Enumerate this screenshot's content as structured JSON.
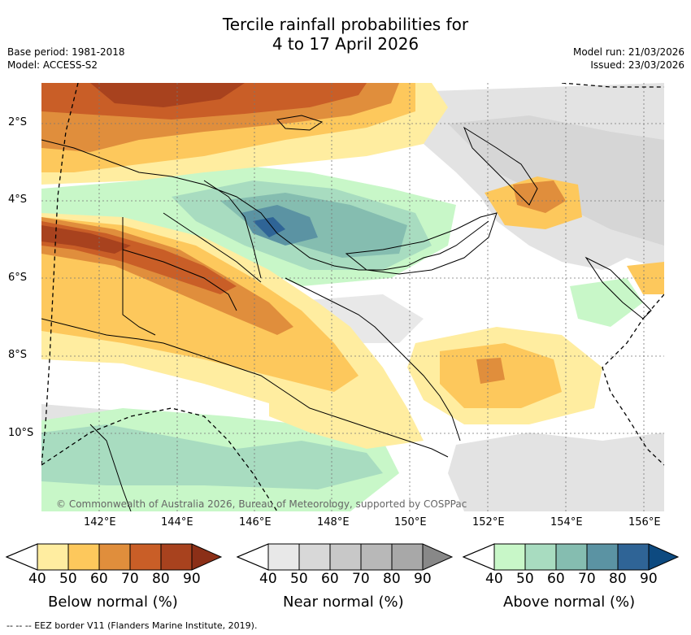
{
  "title": {
    "line1": "Tercile rainfall probabilities for",
    "line2": "4 to 17 April 2026"
  },
  "meta": {
    "base_period": "Base period: 1981-2018",
    "model": "Model: ACCESS-S2",
    "model_run": "Model run: 21/03/2026",
    "issued": "Issued: 23/03/2026"
  },
  "map": {
    "copyright": "© Commonwealth of Australia 2026, Bureau of Meteorology, supported by COSPPac",
    "lat_labels": [
      "2°S",
      "4°S",
      "6°S",
      "8°S",
      "10°S"
    ],
    "lon_labels": [
      "142°E",
      "144°E",
      "146°E",
      "148°E",
      "150°E",
      "152°E",
      "154°E",
      "156°E"
    ]
  },
  "legends": [
    {
      "label": "Below normal (%)",
      "ticks": [
        "40",
        "50",
        "60",
        "70",
        "80",
        "90"
      ],
      "colors": [
        "#ffeda0",
        "#fdc85c",
        "#e08e3c",
        "#c95e27",
        "#a8421e",
        "#8b2f17"
      ]
    },
    {
      "label": "Near normal (%)",
      "ticks": [
        "40",
        "50",
        "60",
        "70",
        "80",
        "90"
      ],
      "colors": [
        "#e8e8e8",
        "#d8d8d8",
        "#c8c8c8",
        "#b8b8b8",
        "#a8a8a8",
        "#888888"
      ]
    },
    {
      "label": "Above normal (%)",
      "ticks": [
        "40",
        "50",
        "60",
        "70",
        "80",
        "90"
      ],
      "colors": [
        "#c8f7c8",
        "#a8dcc0",
        "#85bdb0",
        "#5b93a3",
        "#2f6496",
        "#0d4a80"
      ]
    }
  ],
  "footnote": "-- -- -- EEZ border V11 (Flanders Marine Institute, 2019)."
}
